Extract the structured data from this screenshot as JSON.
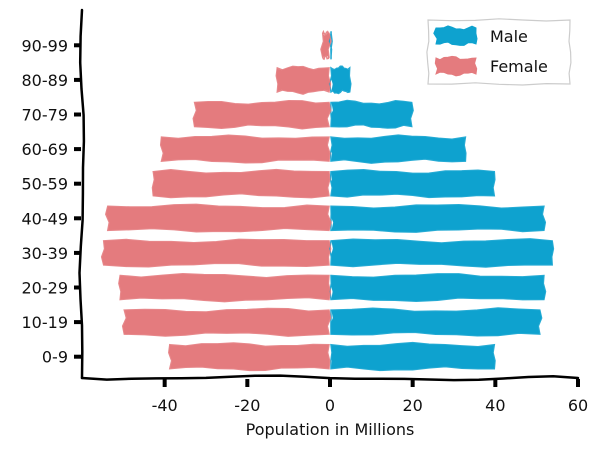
{
  "chart_data": {
    "type": "bar",
    "orientation": "horizontal",
    "style": "xkcd-sketch",
    "title": "",
    "xlabel": "Population in Millions",
    "ylabel": "",
    "categories": [
      "0-9",
      "10-19",
      "20-29",
      "30-39",
      "40-49",
      "50-59",
      "60-69",
      "70-79",
      "80-89",
      "90-99"
    ],
    "series": [
      {
        "name": "Male",
        "color": "#0ea2cf",
        "values": [
          40,
          51,
          52,
          54,
          52,
          40,
          33,
          20,
          5,
          0.5
        ]
      },
      {
        "name": "Female",
        "color": "#e47b7e",
        "values": [
          -39,
          -50,
          -51,
          -55,
          -54,
          -43,
          -41,
          -33,
          -13,
          -2
        ]
      }
    ],
    "xlim": [
      -60,
      60
    ],
    "xticks": [
      -40,
      -20,
      0,
      20,
      40,
      60
    ],
    "xtick_labels": [
      "-40",
      "-20",
      "0",
      "20",
      "40",
      "60"
    ],
    "grid": false,
    "legend_placement": "top-right"
  }
}
